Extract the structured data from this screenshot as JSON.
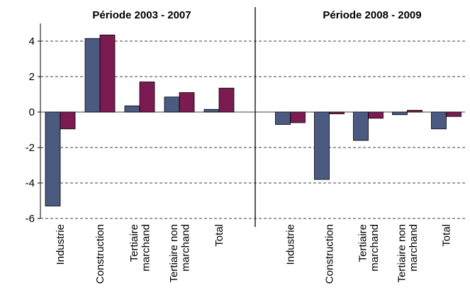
{
  "chart_data": {
    "type": "bar",
    "ylim": [
      -6,
      5
    ],
    "yticks": [
      -6,
      -4,
      -2,
      0,
      2,
      4
    ],
    "grid": true,
    "panels": [
      {
        "title": "Période 2003 - 2007",
        "categories": [
          "Industrie",
          "Construction",
          "Tertiaire\nmarchand",
          "Tertiaire non\nmarchand",
          "Total"
        ],
        "series": [
          {
            "color": "#4b5a80",
            "values": [
              -5.3,
              4.15,
              0.35,
              0.85,
              0.15
            ]
          },
          {
            "color": "#7c1a52",
            "values": [
              -0.95,
              4.35,
              1.7,
              1.1,
              1.35
            ]
          }
        ]
      },
      {
        "title": "Période 2008 - 2009",
        "categories": [
          "Industrie",
          "Construction",
          "Tertiaire\nmarchand",
          "Tertiaire non\nmarchand",
          "Total"
        ],
        "series": [
          {
            "color": "#4b5a80",
            "values": [
              -0.7,
              -3.8,
              -1.6,
              -0.15,
              -0.95
            ]
          },
          {
            "color": "#7c1a52",
            "values": [
              -0.6,
              -0.1,
              -0.35,
              0.1,
              -0.25
            ]
          }
        ]
      }
    ]
  }
}
